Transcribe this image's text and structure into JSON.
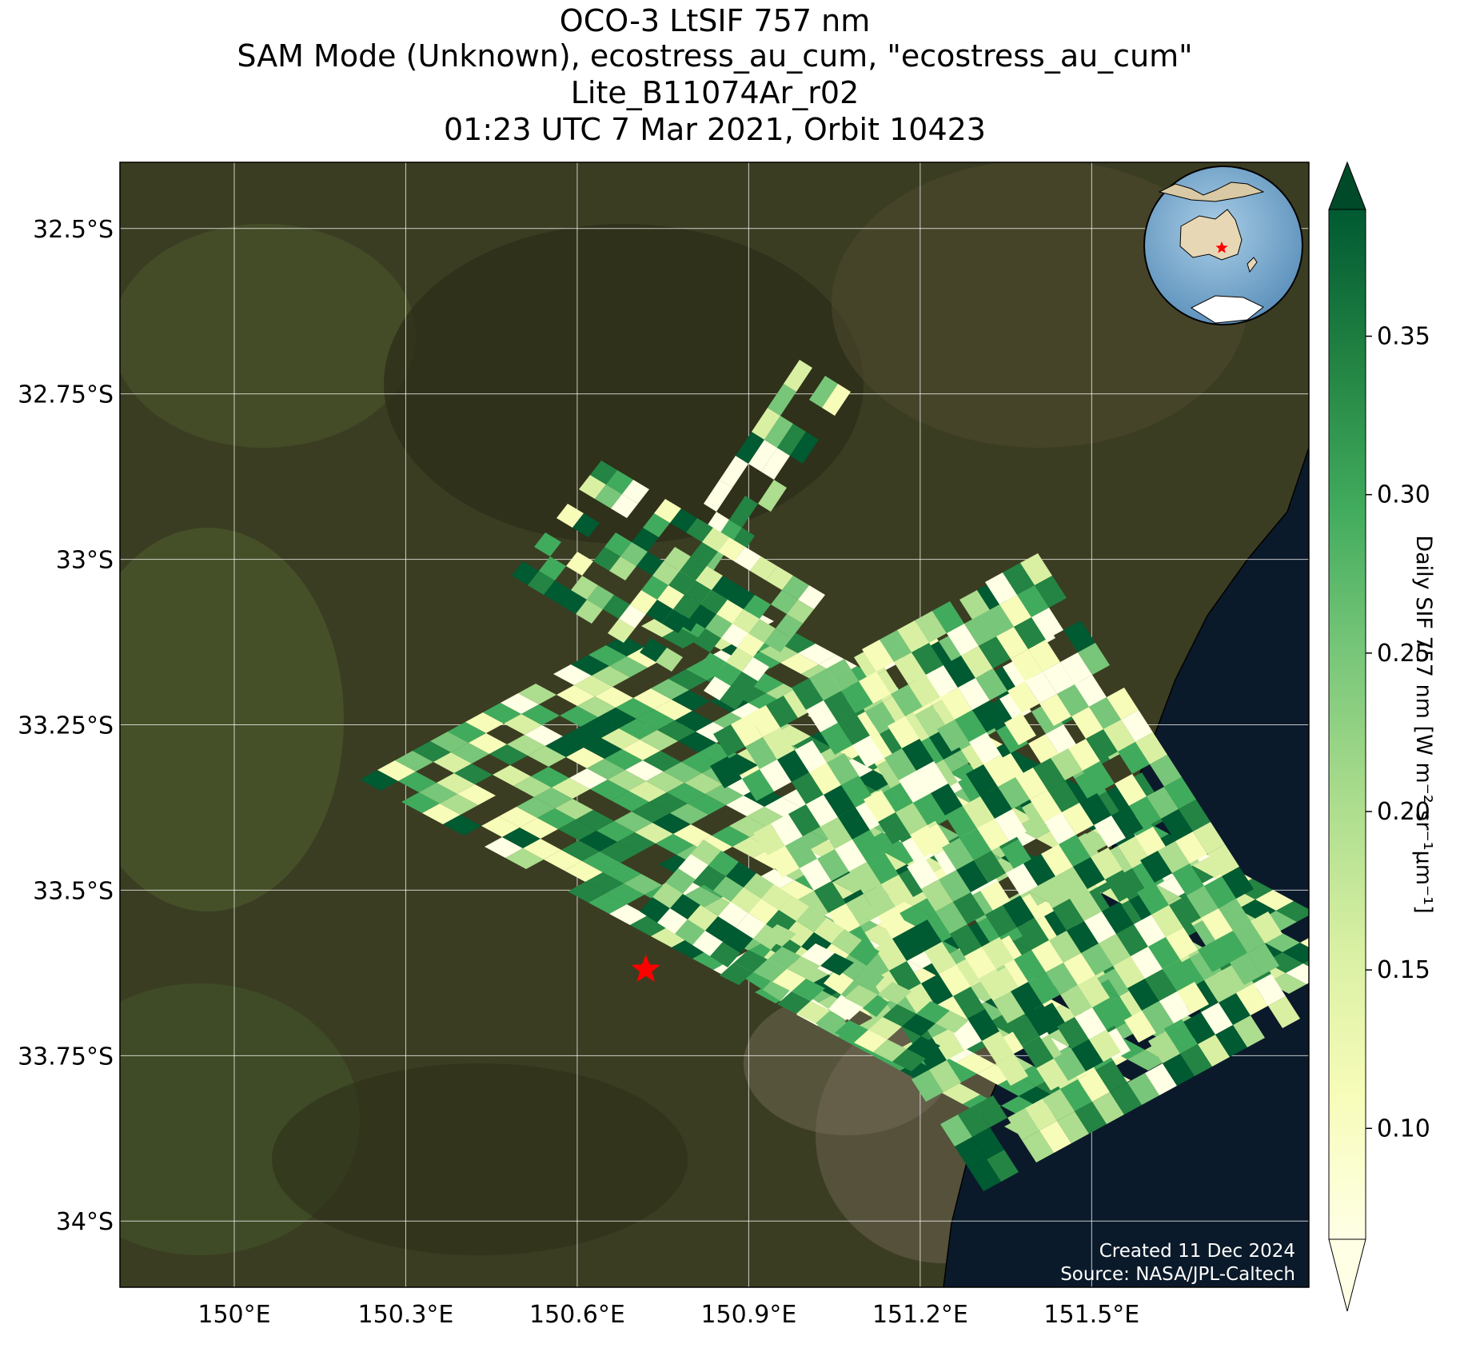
{
  "title": {
    "line1": "OCO-3 LtSIF 757 nm",
    "line2": "SAM Mode (Unknown), ecostress_au_cum, \"ecostress_au_cum\"",
    "line3": "Lite_B11074Ar_r02",
    "line4": "01:23 UTC 7 Mar 2021, Orbit 10423"
  },
  "map": {
    "lon_range": [
      149.8,
      151.88
    ],
    "lat_range": [
      -34.1,
      -32.4
    ],
    "lon_ticks": [
      {
        "value": 150.0,
        "label": "150°E"
      },
      {
        "value": 150.3,
        "label": "150.3°E"
      },
      {
        "value": 150.6,
        "label": "150.6°E"
      },
      {
        "value": 150.9,
        "label": "150.9°E"
      },
      {
        "value": 151.2,
        "label": "151.2°E"
      },
      {
        "value": 151.5,
        "label": "151.5°E"
      }
    ],
    "lat_ticks": [
      {
        "value": -32.5,
        "label": "32.5°S"
      },
      {
        "value": -32.75,
        "label": "32.75°S"
      },
      {
        "value": -33.0,
        "label": "33°S"
      },
      {
        "value": -33.25,
        "label": "33.25°S"
      },
      {
        "value": -33.5,
        "label": "33.5°S"
      },
      {
        "value": -33.75,
        "label": "33.75°S"
      },
      {
        "value": -34.0,
        "label": "34°S"
      }
    ],
    "target": {
      "lon": 150.72,
      "lat": -33.62,
      "marker": "star-icon",
      "color": "#ff0000"
    },
    "background": "satellite imagery: forested ranges, coastline and Tasman Sea",
    "inset": "orthographic globe centred on Australia with red star at target"
  },
  "colorbar": {
    "label": "Daily SIF 757 nm [W m⁻² sr⁻¹μm⁻¹]",
    "colormap": "YlGn",
    "range": [
      0.065,
      0.39
    ],
    "ticks": [
      "0.10",
      "0.15",
      "0.20",
      "0.25",
      "0.30",
      "0.35"
    ],
    "tick_values": [
      0.1,
      0.15,
      0.2,
      0.25,
      0.3,
      0.35
    ],
    "extend": "both"
  },
  "credits": {
    "created": "Created 11 Dec 2024",
    "source": "Source: NASA/JPL-Caltech"
  },
  "colors": {
    "land": "#3b3d22",
    "ocean": "#0b1a2a",
    "grid": "#ffffff",
    "star": "#ff0000"
  }
}
